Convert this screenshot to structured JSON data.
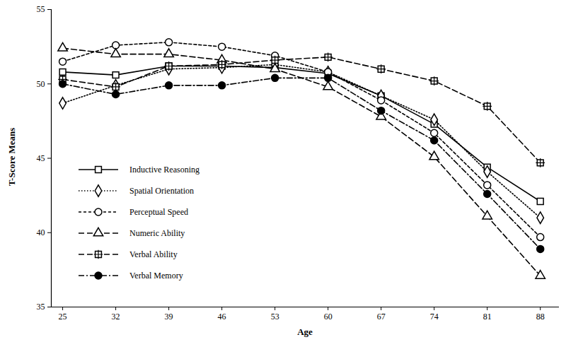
{
  "chart_data": {
    "type": "line",
    "x_label": "Age",
    "y_label": "T-Score Means",
    "x": [
      25,
      32,
      39,
      46,
      53,
      60,
      67,
      74,
      81,
      88
    ],
    "xlim": [
      23.5,
      90.5
    ],
    "xticks": [
      25,
      32,
      39,
      46,
      53,
      60,
      67,
      74,
      81,
      88
    ],
    "ylim": [
      35,
      55
    ],
    "yticks": [
      35,
      40,
      45,
      50,
      55
    ],
    "grid": false,
    "legend": "lower left",
    "series": [
      {
        "name": "Inductive Reasoning",
        "color": "#000000",
        "marker": "square",
        "line_style": "solid",
        "values": [
          50.8,
          50.6,
          51.2,
          51.2,
          51.1,
          50.7,
          49.2,
          47.3,
          44.4,
          42.1
        ]
      },
      {
        "name": "Spatial Orientation",
        "color": "#000000",
        "marker": "diamond",
        "line_style": "dotted",
        "values": [
          48.7,
          49.9,
          51.0,
          51.1,
          51.3,
          50.8,
          49.2,
          47.6,
          44.1,
          41.0
        ]
      },
      {
        "name": "Perceptual Speed",
        "color": "#000000",
        "marker": "circle",
        "line_style": "dashed",
        "values": [
          51.5,
          52.6,
          52.8,
          52.5,
          51.9,
          50.8,
          48.9,
          46.7,
          43.2,
          39.7
        ]
      },
      {
        "name": "Numeric Ability",
        "color": "#000000",
        "marker": "triangle",
        "line_style": "longdash",
        "values": [
          52.4,
          52.0,
          52.0,
          51.6,
          51.0,
          49.8,
          47.8,
          45.1,
          41.1,
          37.1
        ]
      },
      {
        "name": "Verbal Ability",
        "color": "#000000",
        "marker": "square_cross",
        "line_style": "longdash",
        "values": [
          50.3,
          49.8,
          51.2,
          51.3,
          51.6,
          51.8,
          51.0,
          50.2,
          48.5,
          44.7
        ]
      },
      {
        "name": "Verbal Memory",
        "color": "#000000",
        "marker": "filled_circle",
        "line_style": "dashdot",
        "values": [
          50.0,
          49.3,
          49.9,
          49.9,
          50.4,
          50.4,
          48.2,
          46.2,
          42.6,
          38.9
        ]
      }
    ]
  }
}
